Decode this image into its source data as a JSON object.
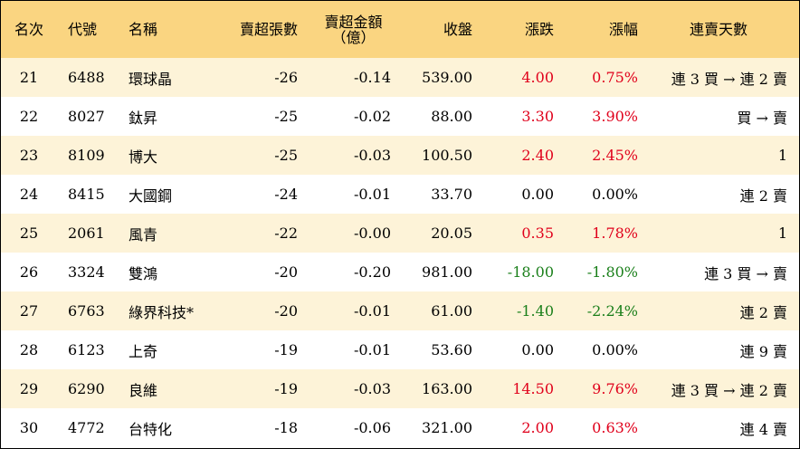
{
  "table": {
    "headers": {
      "rank": "名次",
      "code": "代號",
      "name": "名稱",
      "net_sell_lots": "賣超張數",
      "net_sell_amount_line1": "賣超金額",
      "net_sell_amount_line2": "（億）",
      "close": "收盤",
      "change": "漲跌",
      "pct_change": "漲幅",
      "consecutive_days": "連賣天數"
    },
    "colors": {
      "up": "#e0001b",
      "down": "#1a7f1a",
      "header_bg": "#fad581",
      "stripe_bg": "#fdf3d8"
    },
    "rows": [
      {
        "rank": "21",
        "code": "6488",
        "name": "環球晶",
        "lots": "-26",
        "amount": "-0.14",
        "close": "539.00",
        "change": "4.00",
        "pct": "0.75%",
        "days": "連 3 買 → 連 2 賣",
        "dir": "up"
      },
      {
        "rank": "22",
        "code": "8027",
        "name": "鈦昇",
        "lots": "-25",
        "amount": "-0.02",
        "close": "88.00",
        "change": "3.30",
        "pct": "3.90%",
        "days": "買 → 賣",
        "dir": "up"
      },
      {
        "rank": "23",
        "code": "8109",
        "name": "博大",
        "lots": "-25",
        "amount": "-0.03",
        "close": "100.50",
        "change": "2.40",
        "pct": "2.45%",
        "days": "1",
        "dir": "up"
      },
      {
        "rank": "24",
        "code": "8415",
        "name": "大國鋼",
        "lots": "-24",
        "amount": "-0.01",
        "close": "33.70",
        "change": "0.00",
        "pct": "0.00%",
        "days": "連 2 賣",
        "dir": "flat"
      },
      {
        "rank": "25",
        "code": "2061",
        "name": "風青",
        "lots": "-22",
        "amount": "-0.00",
        "close": "20.05",
        "change": "0.35",
        "pct": "1.78%",
        "days": "1",
        "dir": "up"
      },
      {
        "rank": "26",
        "code": "3324",
        "name": "雙鴻",
        "lots": "-20",
        "amount": "-0.20",
        "close": "981.00",
        "change": "-18.00",
        "pct": "-1.80%",
        "days": "連 3 買 → 賣",
        "dir": "down"
      },
      {
        "rank": "27",
        "code": "6763",
        "name": "綠界科技*",
        "lots": "-20",
        "amount": "-0.01",
        "close": "61.00",
        "change": "-1.40",
        "pct": "-2.24%",
        "days": "連 2 賣",
        "dir": "down"
      },
      {
        "rank": "28",
        "code": "6123",
        "name": "上奇",
        "lots": "-19",
        "amount": "-0.01",
        "close": "53.60",
        "change": "0.00",
        "pct": "0.00%",
        "days": "連 9 賣",
        "dir": "flat"
      },
      {
        "rank": "29",
        "code": "6290",
        "name": "良維",
        "lots": "-19",
        "amount": "-0.03",
        "close": "163.00",
        "change": "14.50",
        "pct": "9.76%",
        "days": "連 3 買 → 連 2 賣",
        "dir": "up"
      },
      {
        "rank": "30",
        "code": "4772",
        "name": "台特化",
        "lots": "-18",
        "amount": "-0.06",
        "close": "321.00",
        "change": "2.00",
        "pct": "0.63%",
        "days": "連 4 賣",
        "dir": "up"
      }
    ]
  }
}
